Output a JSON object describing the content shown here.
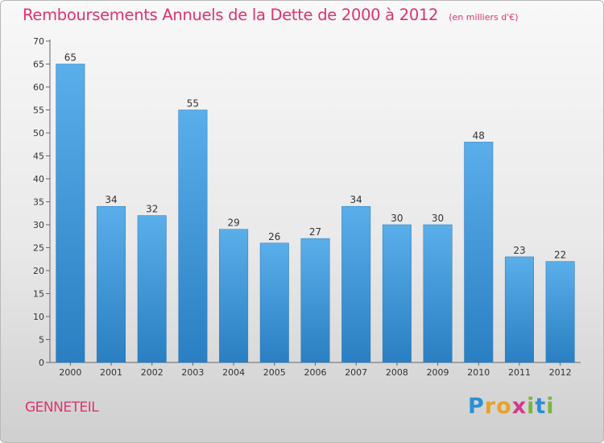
{
  "page": {
    "commune": "GENNETEIL",
    "brand": {
      "letters": [
        {
          "char": "P",
          "color": "#2b8fd6"
        },
        {
          "char": "r",
          "color": "#e8a12a"
        },
        {
          "char": "o",
          "color": "#e8a12a"
        },
        {
          "char": "x",
          "color": "#d23a8a"
        },
        {
          "char": "i",
          "color": "#7cb342"
        },
        {
          "char": "t",
          "color": "#2b8fd6"
        },
        {
          "char": "i",
          "color": "#7cb342"
        }
      ]
    }
  },
  "chart_data": {
    "type": "bar",
    "title": "Remboursements Annuels de la Dette de 2000 à 2012",
    "subtitle": "(en milliers d'€)",
    "xlabel": "",
    "ylabel": "",
    "categories": [
      "2000",
      "2001",
      "2002",
      "2003",
      "2004",
      "2005",
      "2006",
      "2007",
      "2008",
      "2009",
      "2010",
      "2011",
      "2012"
    ],
    "values": [
      65,
      34,
      32,
      55,
      29,
      26,
      27,
      34,
      30,
      30,
      48,
      23,
      22
    ],
    "ylim": [
      0,
      70
    ],
    "yticks": [
      0,
      5,
      10,
      15,
      20,
      25,
      30,
      35,
      40,
      45,
      50,
      55,
      60,
      65,
      70
    ],
    "grid": false,
    "data_labels": true,
    "bar_color": "#3f9ad9",
    "title_color": "#e0336b"
  }
}
